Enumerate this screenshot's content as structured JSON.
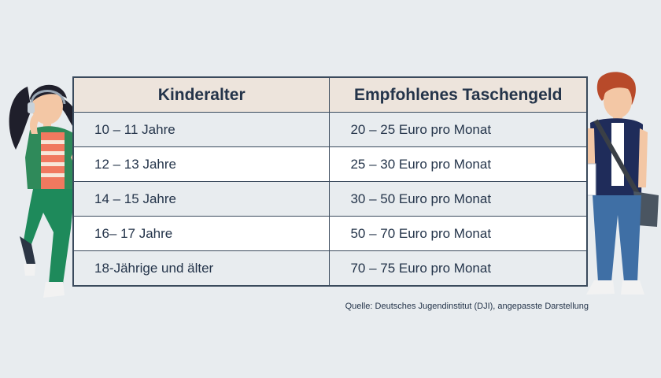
{
  "table": {
    "headers": [
      "Kinderalter",
      "Empfohlenes Taschengeld"
    ],
    "rows": [
      [
        "10 – 11 Jahre",
        "20 – 25 Euro pro Monat"
      ],
      [
        "12 – 13 Jahre",
        "25 – 30 Euro pro Monat"
      ],
      [
        "14 – 15 Jahre",
        "30 – 50 Euro pro Monat"
      ],
      [
        "16– 17 Jahre",
        "50 – 70 Euro pro Monat"
      ],
      [
        "18-Jährige und älter",
        "70 – 75 Euro pro Monat"
      ]
    ]
  },
  "source": "Quelle: Deutsches Jugendinstitut (DJI), angepasste Darstellung",
  "colors": {
    "background": "#e8ecef",
    "header_fill": "#ede4dc",
    "text": "#24344a",
    "border": "#3a4a5c"
  }
}
